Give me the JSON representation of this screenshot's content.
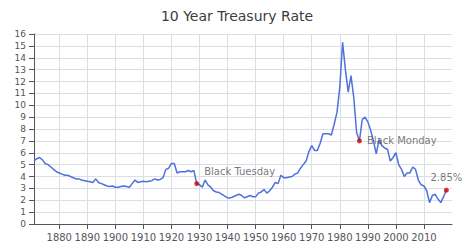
{
  "chart_data": {
    "type": "line",
    "title": "10 Year Treasury Rate",
    "x": [
      1871,
      1872,
      1873,
      1874,
      1875,
      1876,
      1877,
      1878,
      1879,
      1880,
      1881,
      1882,
      1883,
      1884,
      1885,
      1886,
      1887,
      1888,
      1889,
      1890,
      1891,
      1892,
      1893,
      1894,
      1895,
      1896,
      1897,
      1898,
      1899,
      1900,
      1901,
      1902,
      1903,
      1904,
      1905,
      1906,
      1907,
      1908,
      1909,
      1910,
      1911,
      1912,
      1913,
      1914,
      1915,
      1916,
      1917,
      1918,
      1919,
      1920,
      1921,
      1922,
      1923,
      1924,
      1925,
      1926,
      1927,
      1928,
      1929,
      1930,
      1931,
      1932,
      1933,
      1934,
      1935,
      1936,
      1937,
      1938,
      1939,
      1940,
      1941,
      1942,
      1943,
      1944,
      1945,
      1946,
      1947,
      1948,
      1949,
      1950,
      1951,
      1952,
      1953,
      1954,
      1955,
      1956,
      1957,
      1958,
      1959,
      1960,
      1961,
      1962,
      1963,
      1964,
      1965,
      1966,
      1967,
      1968,
      1969,
      1970,
      1971,
      1972,
      1973,
      1974,
      1975,
      1976,
      1977,
      1978,
      1979,
      1980,
      1981,
      1982,
      1983,
      1984,
      1985,
      1986,
      1987,
      1988,
      1989,
      1990,
      1991,
      1992,
      1993,
      1994,
      1995,
      1996,
      1997,
      1998,
      1999,
      2000,
      2001,
      2002,
      2003,
      2004,
      2005,
      2006,
      2007,
      2008,
      2009,
      2010,
      2011,
      2012,
      2013,
      2014,
      2015,
      2016,
      2017,
      2018
    ],
    "values": [
      5.32,
      5.5,
      5.6,
      5.4,
      5.1,
      5.0,
      4.8,
      4.6,
      4.4,
      4.3,
      4.2,
      4.1,
      4.1,
      4.0,
      3.9,
      3.8,
      3.8,
      3.7,
      3.65,
      3.6,
      3.55,
      3.5,
      3.8,
      3.5,
      3.4,
      3.3,
      3.2,
      3.15,
      3.2,
      3.1,
      3.1,
      3.15,
      3.2,
      3.15,
      3.1,
      3.4,
      3.7,
      3.5,
      3.55,
      3.6,
      3.55,
      3.6,
      3.65,
      3.8,
      3.7,
      3.75,
      3.9,
      4.6,
      4.7,
      5.1,
      5.1,
      4.3,
      4.4,
      4.4,
      4.4,
      4.5,
      4.4,
      4.5,
      3.4,
      3.3,
      3.1,
      3.7,
      3.3,
      3.1,
      2.8,
      2.7,
      2.65,
      2.5,
      2.35,
      2.2,
      2.2,
      2.3,
      2.4,
      2.5,
      2.4,
      2.2,
      2.3,
      2.4,
      2.3,
      2.3,
      2.6,
      2.7,
      2.9,
      2.6,
      2.8,
      3.1,
      3.5,
      3.4,
      4.1,
      3.9,
      3.9,
      3.95,
      4.0,
      4.2,
      4.3,
      4.7,
      5.0,
      5.3,
      6.1,
      6.6,
      6.2,
      6.2,
      6.8,
      7.6,
      7.6,
      7.6,
      7.5,
      8.4,
      9.4,
      11.5,
      15.3,
      13.0,
      11.1,
      12.5,
      10.6,
      7.7,
      7.0,
      8.8,
      9.0,
      8.6,
      7.9,
      7.0,
      5.9,
      7.1,
      6.6,
      6.4,
      6.3,
      5.3,
      5.6,
      6.0,
      5.0,
      4.6,
      4.0,
      4.3,
      4.3,
      4.8,
      4.6,
      3.7,
      3.3,
      3.2,
      2.8,
      1.8,
      2.4,
      2.5,
      2.1,
      1.8,
      2.3,
      2.85
    ],
    "xlim": [
      1871,
      2020
    ],
    "xticks": [
      1880,
      1890,
      1900,
      1910,
      1920,
      1930,
      1940,
      1950,
      1960,
      1970,
      1980,
      1990,
      2000,
      2010
    ],
    "ylim": [
      0,
      16
    ],
    "yticks": [
      0,
      1,
      2,
      3,
      4,
      5,
      6,
      7,
      8,
      9,
      10,
      11,
      12,
      13,
      14,
      15,
      16
    ],
    "grid": true,
    "annotations": [
      {
        "x": 1929,
        "y": 3.4,
        "text": "Black Tuesday",
        "color": "#cc0000"
      },
      {
        "x": 1987,
        "y": 7.0,
        "text": "Black Monday",
        "color": "#cc0000"
      },
      {
        "x": 2018,
        "y": 2.85,
        "text": "2.85%",
        "color": "#cc0000"
      }
    ]
  }
}
